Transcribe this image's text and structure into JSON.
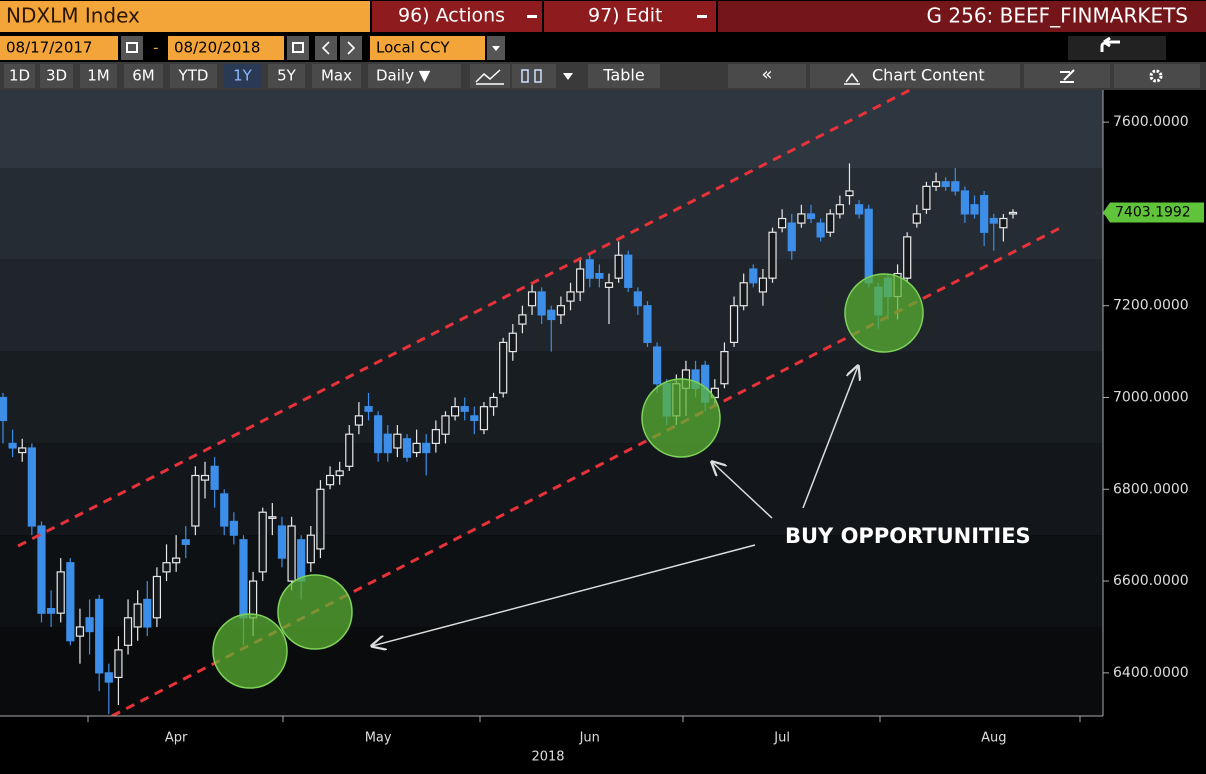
{
  "header": {
    "security": "NDXLM Index",
    "actions": "96) Actions",
    "edit": "97) Edit",
    "group": "G 256: BEEF_FINMARKETS"
  },
  "controls": {
    "start_date": "08/17/2017",
    "separator": "-",
    "end_date": "08/20/2018",
    "currency": "Local CCY"
  },
  "toolbar": {
    "periods": [
      "1D",
      "3D",
      "1M",
      "6M",
      "YTD",
      "1Y",
      "5Y",
      "Max"
    ],
    "frequency": "Daily ▼",
    "table": "Table",
    "collapse": "«",
    "chart_content": "Chart Content"
  },
  "chart_data": {
    "type": "candlestick",
    "x_label": "2018",
    "annotation": "BUY OPPORTUNITIES",
    "up_color": "#e8e8e8",
    "down_color": "#3d8ee8",
    "ylim": [
      6306,
      7670
    ],
    "yticks": [
      {
        "value": 6400,
        "label": "6400.0000"
      },
      {
        "value": 6600,
        "label": "6600.0000"
      },
      {
        "value": 6800,
        "label": "6800.0000"
      },
      {
        "value": 7000,
        "label": "7000.0000"
      },
      {
        "value": 7200,
        "label": "7200.0000"
      },
      {
        "value": 7400,
        "label": "7400.0000"
      },
      {
        "value": 7600,
        "label": "7600.0000"
      }
    ],
    "categories": [
      null,
      null,
      null,
      null,
      null,
      null,
      null,
      null,
      null,
      null,
      null,
      null,
      null,
      null,
      null,
      null,
      null,
      null,
      "Apr",
      null,
      null,
      null,
      null,
      null,
      null,
      null,
      null,
      null,
      null,
      null,
      null,
      null,
      null,
      null,
      null,
      null,
      null,
      null,
      null,
      "May",
      null,
      null,
      null,
      null,
      null,
      null,
      null,
      null,
      null,
      null,
      null,
      null,
      null,
      null,
      null,
      null,
      null,
      null,
      null,
      null,
      null,
      "Jun",
      null,
      null,
      null,
      null,
      null,
      null,
      null,
      null,
      null,
      null,
      null,
      null,
      null,
      null,
      null,
      null,
      null,
      null,
      null,
      "Jul",
      null,
      null,
      null,
      null,
      null,
      null,
      null,
      null,
      null,
      null,
      null,
      null,
      null,
      null,
      null,
      null,
      null,
      null,
      null,
      null,
      null,
      "Aug",
      null,
      null
    ],
    "open": [
      7000,
      6900,
      6880,
      6890,
      6720,
      6540,
      6530,
      6640,
      6480,
      6520,
      6560,
      6400,
      6390,
      6460,
      6500,
      6560,
      6520,
      6620,
      6640,
      6690,
      6720,
      6820,
      6850,
      6790,
      6730,
      6690,
      6520,
      6620,
      6740,
      6720,
      6600,
      6690,
      6640,
      6670,
      6810,
      6830,
      6850,
      6940,
      6980,
      6960,
      6920,
      6890,
      6910,
      6880,
      6900,
      6900,
      6920,
      6960,
      6980,
      6960,
      6930,
      6980,
      7010,
      7100,
      7160,
      7200,
      7230,
      7190,
      7180,
      7210,
      7230,
      7300,
      7270,
      7240,
      7260,
      7310,
      7230,
      7200,
      7110,
      7030,
      6960,
      7020,
      7060,
      7070,
      7000,
      7030,
      7120,
      7200,
      7280,
      7230,
      7260,
      7370,
      7380,
      7380,
      7400,
      7380,
      7360,
      7400,
      7440,
      7420,
      7410,
      7240,
      7260,
      7220,
      7260,
      7380,
      7410,
      7460,
      7470,
      7470,
      7450,
      7420,
      7440,
      7390,
      7370,
      7400
    ],
    "high": [
      7010,
      6930,
      6910,
      6900,
      6730,
      6580,
      6650,
      6650,
      6540,
      6560,
      6570,
      6420,
      6480,
      6560,
      6580,
      6600,
      6630,
      6680,
      6700,
      6720,
      6850,
      6860,
      6870,
      6800,
      6750,
      6700,
      6620,
      6760,
      6770,
      6740,
      6740,
      6700,
      6720,
      6820,
      6850,
      6860,
      6940,
      6990,
      7010,
      6970,
      6940,
      6940,
      6920,
      6930,
      6920,
      6950,
      6970,
      7000,
      7000,
      6980,
      6990,
      7010,
      7130,
      7160,
      7200,
      7250,
      7240,
      7200,
      7220,
      7250,
      7300,
      7310,
      7290,
      7270,
      7340,
      7320,
      7240,
      7210,
      7120,
      7040,
      7050,
      7080,
      7080,
      7080,
      7040,
      7120,
      7220,
      7270,
      7290,
      7280,
      7370,
      7410,
      7400,
      7420,
      7420,
      7390,
      7410,
      7440,
      7510,
      7430,
      7420,
      7250,
      7270,
      7290,
      7360,
      7420,
      7470,
      7490,
      7480,
      7500,
      7460,
      7440,
      7450,
      7400,
      7400,
      7410
    ],
    "low": [
      6900,
      6870,
      6860,
      6700,
      6510,
      6500,
      6510,
      6460,
      6420,
      6440,
      6360,
      6310,
      6330,
      6440,
      6470,
      6480,
      6500,
      6600,
      6620,
      6650,
      6700,
      6780,
      6760,
      6700,
      6680,
      6460,
      6480,
      6600,
      6700,
      6630,
      6580,
      6560,
      6620,
      6650,
      6800,
      6810,
      6840,
      6920,
      6950,
      6860,
      6860,
      6870,
      6860,
      6870,
      6830,
      6880,
      6900,
      6950,
      6950,
      6920,
      6920,
      6960,
      7000,
      7080,
      7140,
      7180,
      7160,
      7100,
      7160,
      7190,
      7210,
      7240,
      7240,
      7160,
      7250,
      7230,
      7180,
      7110,
      7010,
      6940,
      6940,
      6960,
      7000,
      6970,
      6980,
      7020,
      7110,
      7190,
      7240,
      7200,
      7250,
      7360,
      7300,
      7370,
      7380,
      7340,
      7350,
      7390,
      7420,
      7390,
      7240,
      7150,
      7170,
      7170,
      7250,
      7370,
      7400,
      7450,
      7450,
      7440,
      7380,
      7390,
      7330,
      7320,
      7340,
      7390
    ],
    "close": [
      6950,
      6890,
      6890,
      6720,
      6530,
      6530,
      6620,
      6470,
      6500,
      6490,
      6400,
      6380,
      6450,
      6520,
      6550,
      6500,
      6610,
      6640,
      6650,
      6680,
      6830,
      6830,
      6800,
      6720,
      6700,
      6520,
      6600,
      6750,
      6740,
      6650,
      6720,
      6600,
      6700,
      6800,
      6830,
      6840,
      6920,
      6960,
      6970,
      6880,
      6880,
      6920,
      6870,
      6900,
      6880,
      6930,
      6960,
      6980,
      6970,
      6950,
      6980,
      7000,
      7120,
      7140,
      7180,
      7230,
      7180,
      7170,
      7200,
      7230,
      7280,
      7260,
      7260,
      7250,
      7310,
      7240,
      7200,
      7120,
      7030,
      6960,
      7030,
      7060,
      7020,
      6990,
      7020,
      7100,
      7200,
      7250,
      7250,
      7260,
      7360,
      7390,
      7320,
      7400,
      7390,
      7350,
      7400,
      7420,
      7450,
      7400,
      7250,
      7180,
      7220,
      7270,
      7350,
      7400,
      7460,
      7470,
      7460,
      7450,
      7400,
      7400,
      7360,
      7380,
      7390,
      7403.1992
    ]
  }
}
